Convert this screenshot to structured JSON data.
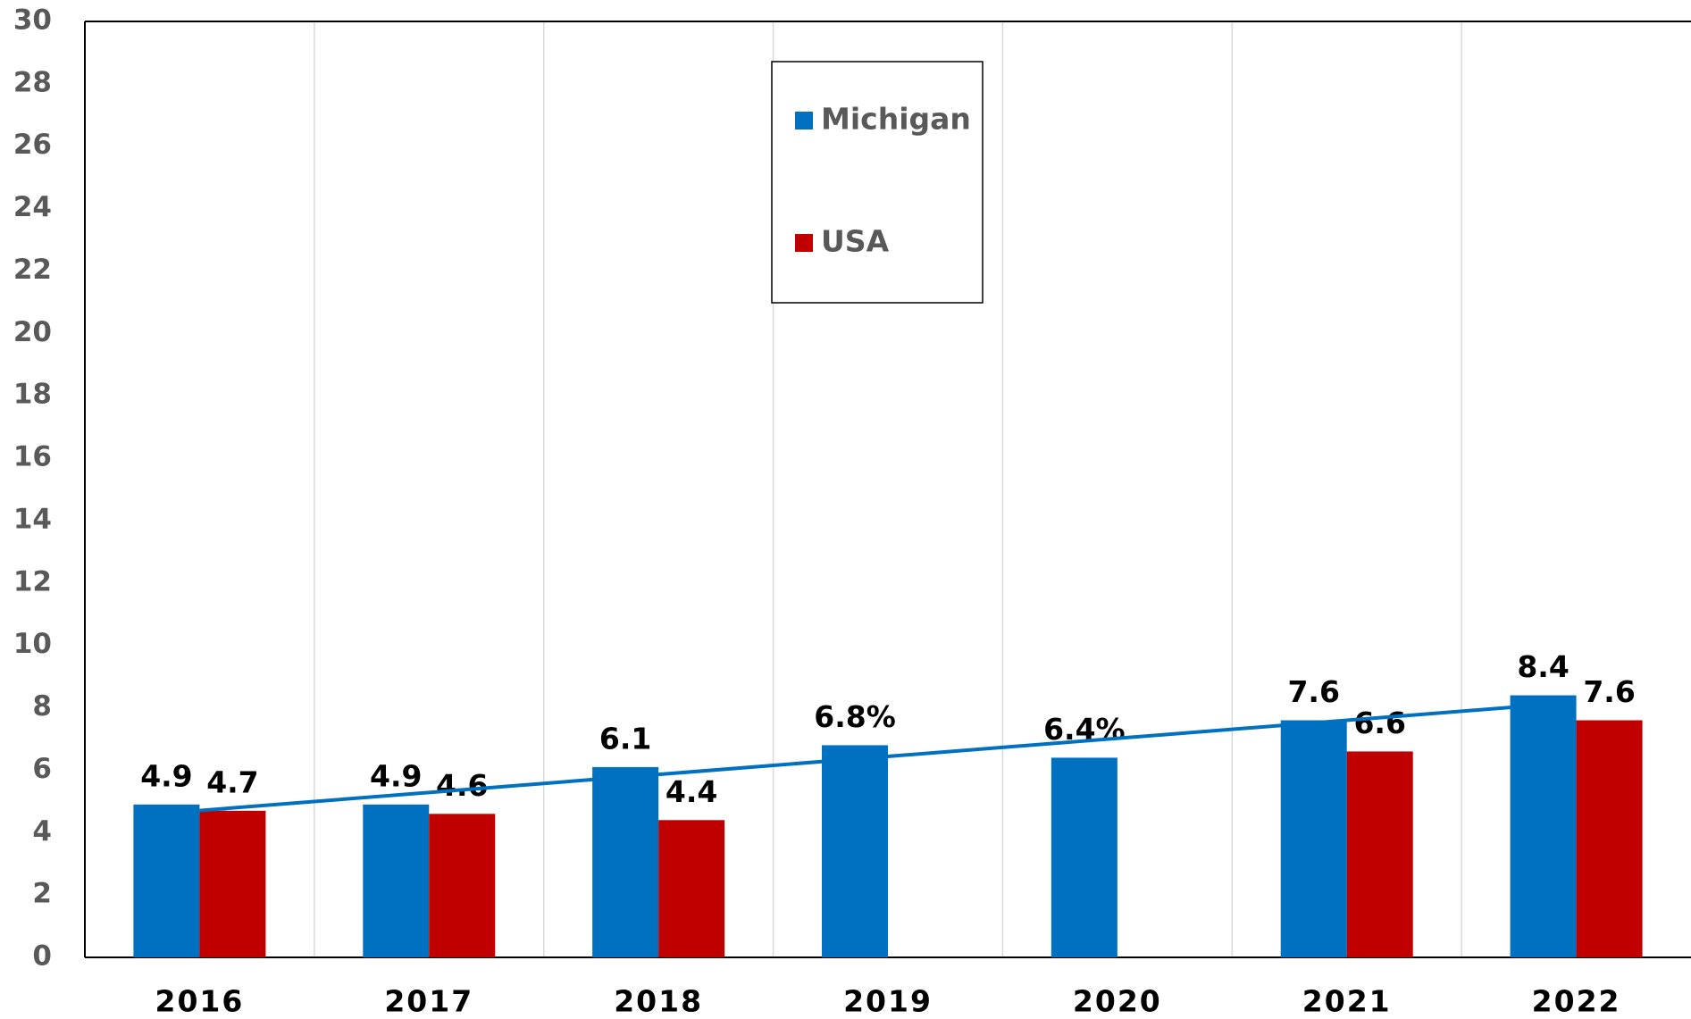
{
  "chart_data": {
    "type": "bar",
    "categories": [
      "2016",
      "2017",
      "2018",
      "2019",
      "2020",
      "2021",
      "2022"
    ],
    "series": [
      {
        "name": "Michigan",
        "color": "#0070c0",
        "values": [
          4.9,
          4.9,
          6.1,
          6.8,
          6.4,
          7.6,
          8.4
        ],
        "value_labels": [
          "4.9",
          "4.9",
          "6.1",
          "6.8%",
          "6.4%",
          "7.6",
          "8.4"
        ]
      },
      {
        "name": "USA",
        "color": "#c00000",
        "values": [
          4.7,
          4.6,
          4.4,
          null,
          null,
          6.6,
          7.6
        ],
        "value_labels": [
          "4.7",
          "4.6",
          "4.4",
          null,
          null,
          "6.6",
          "7.6"
        ]
      }
    ],
    "ylim": [
      0,
      30
    ],
    "yticks": [
      0,
      2,
      4,
      6,
      8,
      10,
      12,
      14,
      16,
      18,
      20,
      22,
      24,
      26,
      28,
      30
    ],
    "trendline": {
      "series": 0,
      "color": "#0070c0"
    },
    "vertical_grid": true,
    "legend": "top"
  }
}
